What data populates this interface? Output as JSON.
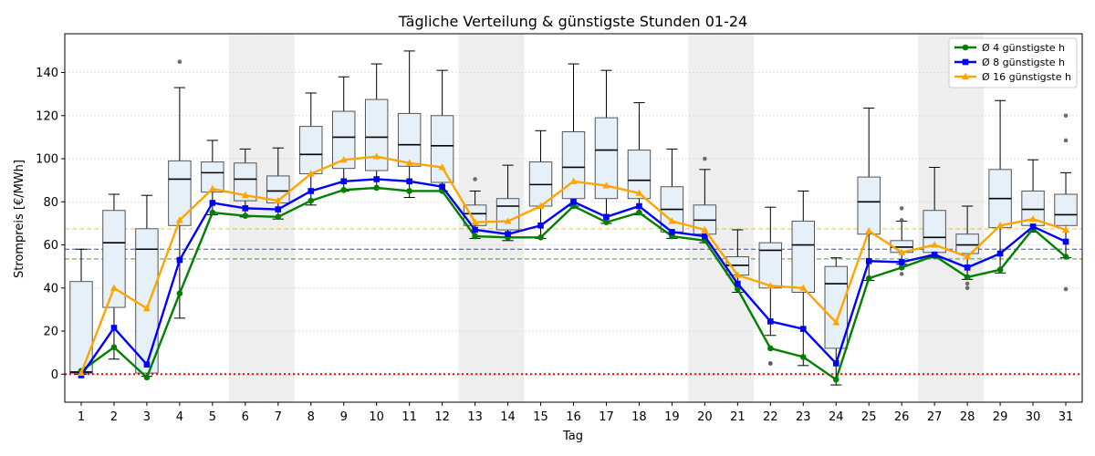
{
  "chart_data": {
    "type": "box+line",
    "title": "Tägliche Verteilung & günstigste Stunden 01-24",
    "xlabel": "Tag",
    "ylabel": "Strompreis [€/MWh]",
    "xlim": [
      0.5,
      31.5
    ],
    "ylim": [
      -13,
      158
    ],
    "yticks": [
      0,
      20,
      40,
      60,
      80,
      100,
      120,
      140
    ],
    "categories": [
      "1",
      "2",
      "3",
      "4",
      "5",
      "6",
      "7",
      "8",
      "9",
      "10",
      "11",
      "12",
      "13",
      "14",
      "15",
      "16",
      "17",
      "18",
      "19",
      "20",
      "21",
      "22",
      "23",
      "24",
      "25",
      "26",
      "27",
      "28",
      "29",
      "30",
      "31"
    ],
    "weekend_days": [
      6,
      7,
      13,
      14,
      20,
      21,
      27,
      28
    ],
    "grid": "y-dotted",
    "legend_position": "top-right",
    "zero_line": 0,
    "reference_lines": [
      {
        "series": "Ø 16 günstigste h",
        "value": 67.5,
        "color": "#ffa500"
      },
      {
        "series": "Ø 8 günstigste h",
        "value": 58,
        "color": "#0000ff"
      },
      {
        "series": "Ø 4 günstigste h",
        "value": 53.5,
        "color": "#008000"
      }
    ],
    "boxes": [
      {
        "whislo": 0,
        "q1": 0.5,
        "med": 1,
        "q3": 43,
        "whishi": 58,
        "fliers": []
      },
      {
        "whislo": 7,
        "q1": 31,
        "med": 61,
        "q3": 76,
        "whishi": 83.5,
        "fliers": []
      },
      {
        "whislo": -1,
        "q1": 0.5,
        "med": 58,
        "q3": 67.5,
        "whishi": 83,
        "fliers": []
      },
      {
        "whislo": 26,
        "q1": 69,
        "med": 90.5,
        "q3": 99,
        "whishi": 133,
        "fliers": [
          145
        ]
      },
      {
        "whislo": 74,
        "q1": 84.5,
        "med": 93.5,
        "q3": 98.5,
        "whishi": 108.5,
        "fliers": []
      },
      {
        "whislo": 73,
        "q1": 80.5,
        "med": 90.5,
        "q3": 98,
        "whishi": 104.5,
        "fliers": []
      },
      {
        "whislo": 72,
        "q1": 79.5,
        "med": 85,
        "q3": 92,
        "whishi": 105,
        "fliers": []
      },
      {
        "whislo": 78.5,
        "q1": 93,
        "med": 102,
        "q3": 115,
        "whishi": 130.5,
        "fliers": []
      },
      {
        "whislo": 85,
        "q1": 95.5,
        "med": 110,
        "q3": 122,
        "whishi": 138,
        "fliers": []
      },
      {
        "whislo": 86,
        "q1": 94.5,
        "med": 110,
        "q3": 127.5,
        "whishi": 144,
        "fliers": []
      },
      {
        "whislo": 82,
        "q1": 96.5,
        "med": 106.5,
        "q3": 121,
        "whishi": 150,
        "fliers": []
      },
      {
        "whislo": 85,
        "q1": 89,
        "med": 106,
        "q3": 120,
        "whishi": 141,
        "fliers": []
      },
      {
        "whislo": 63,
        "q1": 69,
        "med": 74.5,
        "q3": 78.5,
        "whishi": 85,
        "fliers": [
          90.5
        ]
      },
      {
        "whislo": 62,
        "q1": 67,
        "med": 78,
        "q3": 81.5,
        "whishi": 97,
        "fliers": []
      },
      {
        "whislo": 63,
        "q1": 78,
        "med": 88,
        "q3": 98.5,
        "whishi": 113,
        "fliers": []
      },
      {
        "whislo": 78,
        "q1": 81.5,
        "med": 96,
        "q3": 112.5,
        "whishi": 144,
        "fliers": []
      },
      {
        "whislo": 70,
        "q1": 81.5,
        "med": 104,
        "q3": 119,
        "whishi": 141,
        "fliers": []
      },
      {
        "whislo": 74,
        "q1": 81.5,
        "med": 90,
        "q3": 104,
        "whishi": 126,
        "fliers": []
      },
      {
        "whislo": 63,
        "q1": 66,
        "med": 76.5,
        "q3": 87,
        "whishi": 104.5,
        "fliers": []
      },
      {
        "whislo": 61,
        "q1": 65,
        "med": 71.5,
        "q3": 78.5,
        "whishi": 95,
        "fliers": [
          100
        ]
      },
      {
        "whislo": 38,
        "q1": 46,
        "med": 50.5,
        "q3": 54.5,
        "whishi": 67,
        "fliers": []
      },
      {
        "whislo": 18,
        "q1": 40,
        "med": 57.5,
        "q3": 61,
        "whishi": 77.5,
        "fliers": [
          5,
          5
        ]
      },
      {
        "whislo": 4,
        "q1": 38,
        "med": 60,
        "q3": 71,
        "whishi": 85,
        "fliers": []
      },
      {
        "whislo": -5,
        "q1": 12,
        "med": 42,
        "q3": 50,
        "whishi": 54,
        "fliers": []
      },
      {
        "whislo": 43.5,
        "q1": 65,
        "med": 80,
        "q3": 91.5,
        "whishi": 123.5,
        "fliers": []
      },
      {
        "whislo": 51,
        "q1": 56.5,
        "med": 59,
        "q3": 62,
        "whishi": 71,
        "fliers": [
          77,
          71.5,
          46.5
        ]
      },
      {
        "whislo": 54,
        "q1": 56.5,
        "med": 63.5,
        "q3": 76,
        "whishi": 96,
        "fliers": []
      },
      {
        "whislo": 44,
        "q1": 56,
        "med": 60,
        "q3": 65,
        "whishi": 78,
        "fliers": [
          42,
          40
        ]
      },
      {
        "whislo": 47,
        "q1": 68,
        "med": 81.5,
        "q3": 95,
        "whishi": 127,
        "fliers": []
      },
      {
        "whislo": 66,
        "q1": 69,
        "med": 76.5,
        "q3": 85,
        "whishi": 99.5,
        "fliers": []
      },
      {
        "whislo": 54,
        "q1": 69,
        "med": 74,
        "q3": 83.5,
        "whishi": 93.5,
        "fliers": [
          120,
          108.5,
          39.5
        ]
      }
    ],
    "series": [
      {
        "name": "Ø 4 günstigste h",
        "color": "#008000",
        "marker": "circle",
        "values": [
          1.5,
          12.5,
          -1.5,
          37.5,
          75,
          73.5,
          73,
          80.5,
          85.5,
          86.5,
          85,
          85,
          64,
          63.5,
          63.5,
          78,
          70.5,
          75,
          64,
          62,
          39.5,
          12,
          8,
          -2.5,
          44.5,
          49.5,
          55,
          45,
          48.5,
          67.5,
          54.5
        ]
      },
      {
        "name": "Ø 8 günstigste h",
        "color": "#0000ff",
        "marker": "square",
        "values": [
          -0.5,
          21.5,
          4.5,
          53,
          79.5,
          77,
          76.5,
          85,
          89.5,
          90.5,
          89.5,
          87,
          67,
          65,
          69,
          80,
          73,
          78,
          66,
          64,
          42,
          24.5,
          21,
          5,
          52.5,
          52,
          55.5,
          49.5,
          56,
          68.5,
          61.5
        ]
      },
      {
        "name": "Ø 16 günstigste h",
        "color": "#ffa500",
        "marker": "triangle",
        "values": [
          0.5,
          40,
          30.5,
          71.5,
          86,
          83,
          80.5,
          93,
          99.5,
          101,
          98,
          96,
          70.5,
          71,
          78,
          89.5,
          87.5,
          84,
          71,
          67,
          46,
          41,
          40,
          24,
          66.5,
          56.5,
          60,
          54.5,
          69,
          72,
          67
        ]
      }
    ]
  }
}
